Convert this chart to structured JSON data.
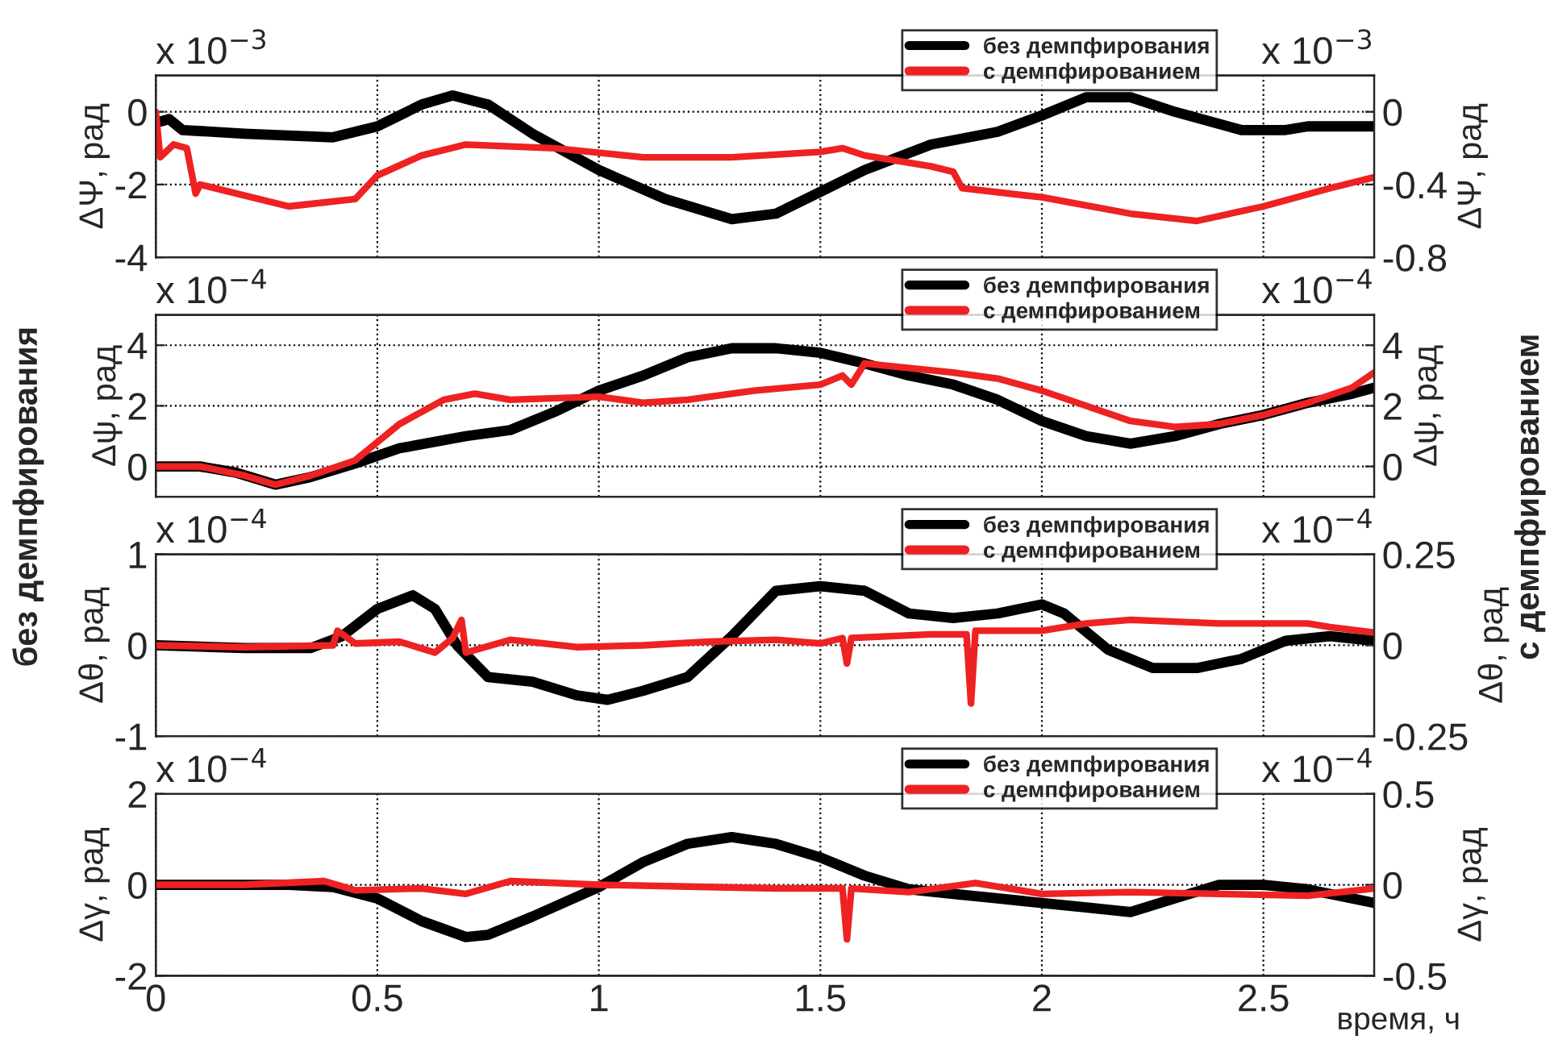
{
  "chart_data": [
    {
      "type": "line",
      "ylabel": "ΔΨ, рад",
      "y2label": "ΔΨ, рад",
      "xlim": [
        0,
        2.75
      ],
      "xticks": [
        0,
        0.5,
        1,
        1.5,
        2,
        2.5
      ],
      "ylim": [
        -4,
        1
      ],
      "yticks": [
        -4,
        -2,
        0
      ],
      "y2lim": [
        -0.8,
        0.2
      ],
      "y2ticks": [
        -0.8,
        -0.4,
        0
      ],
      "grid": true,
      "legend": "top right",
      "tick_labels": "y",
      "line_style": "solid",
      "annotations": [
        "x 10$^{−3}$",
        "x 10$^{−3}$"
      ],
      "series": [
        {
          "name": "без демпфирования",
          "color": "#000000",
          "axis": "y",
          "x": [
            0,
            0.03,
            0.06,
            0.2,
            0.4,
            0.5,
            0.6,
            0.67,
            0.75,
            0.85,
            1.0,
            1.15,
            1.3,
            1.4,
            1.5,
            1.6,
            1.75,
            1.9,
            2.0,
            2.1,
            2.2,
            2.3,
            2.45,
            2.55,
            2.6,
            2.75
          ],
          "values": [
            -0.3,
            -0.2,
            -0.5,
            -0.6,
            -0.7,
            -0.4,
            0.2,
            0.45,
            0.2,
            -0.6,
            -1.6,
            -2.4,
            -2.95,
            -2.8,
            -2.2,
            -1.6,
            -0.9,
            -0.55,
            -0.1,
            0.4,
            0.4,
            0.0,
            -0.5,
            -0.5,
            -0.4,
            -0.4
          ]
        },
        {
          "name": "с демпфированием",
          "color": "#ee2222",
          "axis": "y2",
          "x": [
            0,
            0.01,
            0.04,
            0.07,
            0.09,
            0.1,
            0.3,
            0.45,
            0.5,
            0.6,
            0.7,
            0.9,
            1.1,
            1.3,
            1.5,
            1.55,
            1.6,
            1.75,
            1.8,
            1.82,
            2.0,
            2.2,
            2.35,
            2.5,
            2.65,
            2.75
          ],
          "values": [
            0.0,
            -0.25,
            -0.18,
            -0.2,
            -0.45,
            -0.4,
            -0.52,
            -0.48,
            -0.35,
            -0.24,
            -0.18,
            -0.2,
            -0.25,
            -0.25,
            -0.22,
            -0.2,
            -0.24,
            -0.3,
            -0.33,
            -0.42,
            -0.47,
            -0.56,
            -0.6,
            -0.52,
            -0.42,
            -0.36
          ]
        }
      ]
    },
    {
      "type": "line",
      "ylabel": "Δψ, рад",
      "y2label": "Δψ, рад",
      "xlim": [
        0,
        2.75
      ],
      "xticks": [
        0,
        0.5,
        1,
        1.5,
        2,
        2.5
      ],
      "ylim": [
        -1,
        5
      ],
      "yticks": [
        0,
        2,
        4
      ],
      "y2lim": [
        -1,
        5
      ],
      "y2ticks": [
        0,
        2,
        4
      ],
      "grid": true,
      "legend": "top right",
      "tick_labels": "y",
      "line_style": "solid",
      "annotations": [
        "x 10$^{−4}$",
        "x 10$^{−4}$",
        "без демпфирования",
        "с демпфированием"
      ],
      "series": [
        {
          "name": "без демпфирования",
          "color": "#000000",
          "axis": "y",
          "x": [
            0,
            0.1,
            0.18,
            0.27,
            0.35,
            0.45,
            0.55,
            0.7,
            0.8,
            0.9,
            1.0,
            1.1,
            1.2,
            1.3,
            1.4,
            1.5,
            1.6,
            1.7,
            1.8,
            1.9,
            2.0,
            2.1,
            2.2,
            2.3,
            2.4,
            2.5,
            2.6,
            2.7,
            2.75
          ],
          "values": [
            0,
            0,
            -0.2,
            -0.6,
            -0.35,
            0.1,
            0.6,
            1.0,
            1.2,
            1.8,
            2.5,
            3.0,
            3.6,
            3.9,
            3.9,
            3.75,
            3.4,
            3.0,
            2.7,
            2.2,
            1.5,
            1.0,
            0.75,
            1.0,
            1.4,
            1.7,
            2.1,
            2.4,
            2.6
          ]
        },
        {
          "name": "с демпфированием",
          "color": "#ee2222",
          "axis": "y2",
          "x": [
            0,
            0.1,
            0.2,
            0.27,
            0.35,
            0.45,
            0.55,
            0.65,
            0.72,
            0.8,
            1.0,
            1.1,
            1.2,
            1.35,
            1.5,
            1.55,
            1.57,
            1.6,
            1.8,
            1.9,
            2.0,
            2.1,
            2.2,
            2.3,
            2.4,
            2.5,
            2.6,
            2.7,
            2.75
          ],
          "values": [
            0,
            0,
            -0.3,
            -0.6,
            -0.3,
            0.2,
            1.4,
            2.2,
            2.4,
            2.2,
            2.3,
            2.1,
            2.2,
            2.5,
            2.7,
            3.0,
            2.7,
            3.4,
            3.1,
            2.9,
            2.5,
            2.0,
            1.5,
            1.3,
            1.4,
            1.7,
            2.1,
            2.6,
            3.1
          ]
        }
      ]
    },
    {
      "type": "line",
      "ylabel": "Δθ, рад",
      "y2label": "Δθ, рад",
      "xlim": [
        0,
        2.75
      ],
      "xticks": [
        0,
        0.5,
        1,
        1.5,
        2,
        2.5
      ],
      "ylim": [
        -1,
        1
      ],
      "yticks": [
        -1,
        0,
        1
      ],
      "y2lim": [
        -0.25,
        0.25
      ],
      "y2ticks": [
        -0.25,
        0,
        0.25
      ],
      "grid": true,
      "legend": "top right",
      "tick_labels": "y",
      "line_style": "solid",
      "annotations": [
        "x 10$^{−4}$",
        "x 10$^{−4}$"
      ],
      "series": [
        {
          "name": "без демпфирования",
          "color": "#000000",
          "axis": "y",
          "x": [
            0,
            0.2,
            0.35,
            0.42,
            0.5,
            0.58,
            0.63,
            0.68,
            0.75,
            0.85,
            0.95,
            1.02,
            1.1,
            1.2,
            1.3,
            1.4,
            1.5,
            1.6,
            1.7,
            1.8,
            1.9,
            2.0,
            2.05,
            2.15,
            2.25,
            2.35,
            2.45,
            2.55,
            2.65,
            2.75
          ],
          "values": [
            0,
            -0.03,
            -0.03,
            0.1,
            0.4,
            0.55,
            0.4,
            0.0,
            -0.35,
            -0.4,
            -0.55,
            -0.6,
            -0.5,
            -0.35,
            0.1,
            0.6,
            0.65,
            0.6,
            0.35,
            0.3,
            0.35,
            0.45,
            0.35,
            -0.05,
            -0.25,
            -0.25,
            -0.15,
            0.05,
            0.1,
            0.05
          ]
        },
        {
          "name": "с демпфированием",
          "color": "#ee2222",
          "axis": "y2",
          "x": [
            0,
            0.2,
            0.4,
            0.41,
            0.45,
            0.55,
            0.63,
            0.67,
            0.69,
            0.7,
            0.8,
            0.95,
            1.1,
            1.25,
            1.4,
            1.5,
            1.55,
            1.56,
            1.57,
            1.75,
            1.83,
            1.84,
            1.85,
            2.0,
            2.1,
            2.2,
            2.4,
            2.6,
            2.65,
            2.75
          ],
          "values": [
            0,
            -0.005,
            0,
            0.04,
            0.005,
            0.01,
            -0.02,
            0.02,
            0.07,
            -0.02,
            0.015,
            -0.005,
            0.0,
            0.01,
            0.015,
            0.005,
            0.02,
            -0.05,
            0.02,
            0.03,
            0.03,
            -0.16,
            0.04,
            0.04,
            0.06,
            0.07,
            0.06,
            0.06,
            0.05,
            0.035
          ]
        }
      ]
    },
    {
      "type": "line",
      "xlabel": "время, ч",
      "ylabel": "Δγ, рад",
      "y2label": "Δγ, рад",
      "xlim": [
        0,
        2.75
      ],
      "xticks": [
        0,
        0.5,
        1,
        1.5,
        2,
        2.5
      ],
      "ylim": [
        -2,
        2
      ],
      "yticks": [
        -2,
        0,
        2
      ],
      "y2lim": [
        -0.5,
        0.5
      ],
      "y2ticks": [
        -0.5,
        0,
        0.5
      ],
      "grid": true,
      "legend": "top right",
      "line_style": "solid",
      "annotations": [
        "x 10$^{−4}$",
        "x 10$^{−4}$"
      ],
      "series": [
        {
          "name": "без демпфирования",
          "color": "#000000",
          "axis": "y",
          "x": [
            0,
            0.3,
            0.4,
            0.5,
            0.6,
            0.7,
            0.75,
            0.85,
            1.0,
            1.1,
            1.2,
            1.3,
            1.4,
            1.5,
            1.6,
            1.7,
            1.8,
            1.9,
            2.0,
            2.1,
            2.2,
            2.3,
            2.4,
            2.5,
            2.6,
            2.75
          ],
          "values": [
            0,
            0,
            -0.05,
            -0.3,
            -0.8,
            -1.15,
            -1.1,
            -0.7,
            -0.05,
            0.5,
            0.9,
            1.05,
            0.9,
            0.6,
            0.2,
            -0.1,
            -0.2,
            -0.3,
            -0.4,
            -0.5,
            -0.6,
            -0.3,
            0.0,
            0.0,
            -0.1,
            -0.4
          ]
        },
        {
          "name": "с демпфированием",
          "color": "#ee2222",
          "axis": "y2",
          "x": [
            0,
            0.2,
            0.38,
            0.45,
            0.6,
            0.7,
            0.8,
            1.0,
            1.2,
            1.4,
            1.55,
            1.56,
            1.57,
            1.7,
            1.85,
            2.0,
            2.2,
            2.4,
            2.6,
            2.75
          ],
          "values": [
            0,
            0,
            0.02,
            -0.03,
            -0.02,
            -0.05,
            0.02,
            0.0,
            -0.01,
            -0.02,
            -0.02,
            -0.3,
            -0.02,
            -0.04,
            0.01,
            -0.05,
            -0.04,
            -0.05,
            -0.06,
            -0.02
          ]
        }
      ]
    }
  ]
}
